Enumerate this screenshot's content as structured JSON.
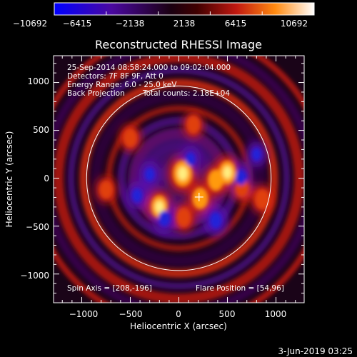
{
  "colorbar": {
    "ticks": [
      "−10692",
      "−6415",
      "−2138",
      "2138",
      "6415",
      "10692"
    ],
    "colors": [
      "#1010ff",
      "#4a0a8c",
      "#000000",
      "#a01010",
      "#ff6a10",
      "#ffffff"
    ]
  },
  "chart_data": {
    "type": "heatmap",
    "title": "Reconstructed RHESSI Image",
    "xlabel": "Heliocentric X (arcsec)",
    "ylabel": "Heliocentric Y (arcsec)",
    "xlim": [
      -1290,
      1290
    ],
    "ylim": [
      -1300,
      1280
    ],
    "xticks": [
      -1000,
      -500,
      0,
      500,
      1000
    ],
    "yticks": [
      -1000,
      -500,
      0,
      500,
      1000
    ],
    "xtick_labels": [
      "−1000",
      "−500",
      "0",
      "500",
      "1000"
    ],
    "ytick_labels": [
      "−1000",
      "−500",
      "0",
      "500",
      "1000"
    ],
    "colorbar_range": [
      -10692,
      10692
    ],
    "solar_limb_radius": 950,
    "spin_axis": [
      208,
      -196
    ],
    "flare_position": [
      54,
      96
    ],
    "sources": [
      {
        "x": 40,
        "y": 50,
        "level": 1.0
      },
      {
        "x": 500,
        "y": 60,
        "level": 0.8
      },
      {
        "x": 380,
        "y": -20,
        "level": 0.6
      },
      {
        "x": -200,
        "y": -300,
        "level": 0.75
      },
      {
        "x": 220,
        "y": -210,
        "level": 0.6
      },
      {
        "x": 650,
        "y": -100,
        "level": 0.45
      },
      {
        "x": 860,
        "y": -220,
        "level": 0.5
      },
      {
        "x": -500,
        "y": 420,
        "level": 0.4
      },
      {
        "x": 50,
        "y": -410,
        "level": 0.45
      },
      {
        "x": -750,
        "y": -120,
        "level": 0.35
      },
      {
        "x": 150,
        "y": 560,
        "level": 0.35
      }
    ],
    "negative_sources": [
      {
        "x": -150,
        "y": -420,
        "level": -0.8
      },
      {
        "x": 380,
        "y": -440,
        "level": -0.85
      },
      {
        "x": 640,
        "y": 10,
        "level": -0.7
      },
      {
        "x": -430,
        "y": -180,
        "level": -0.55
      },
      {
        "x": -300,
        "y": 40,
        "level": -0.5
      },
      {
        "x": 120,
        "y": 200,
        "level": -0.45
      },
      {
        "x": 800,
        "y": 250,
        "level": -0.4
      }
    ]
  },
  "annotations": {
    "line1": "25-Sep-2014 08:58:24.000 to 09:02:04.000",
    "line2": "Detectors: 7F 8F 9F, Att 0",
    "line3": "Energy Range: 6.0 - 25.0 keV",
    "line4_left": "Back Projection",
    "line4_right": "Total counts: 2.18E+04",
    "spin_axis_text": "Spin Axis = [208,-196]",
    "flare_position_text": "Flare Position = [54,96]"
  },
  "footer": {
    "date": "3-Jun-2019 03:25"
  }
}
